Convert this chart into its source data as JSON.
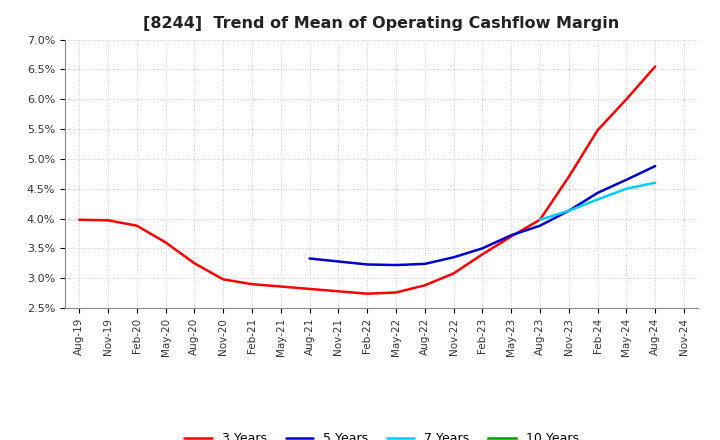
{
  "title": "[8244]  Trend of Mean of Operating Cashflow Margin",
  "x_labels": [
    "Aug-19",
    "Nov-19",
    "Feb-20",
    "May-20",
    "Aug-20",
    "Nov-20",
    "Feb-21",
    "May-21",
    "Aug-21",
    "Nov-21",
    "Feb-22",
    "May-22",
    "Aug-22",
    "Nov-22",
    "Feb-23",
    "May-23",
    "Aug-23",
    "Nov-23",
    "Feb-24",
    "May-24",
    "Aug-24",
    "Nov-24"
  ],
  "ylim": [
    0.025,
    0.07
  ],
  "yticks": [
    0.025,
    0.03,
    0.035,
    0.04,
    0.045,
    0.05,
    0.055,
    0.06,
    0.065,
    0.07
  ],
  "ytick_labels": [
    "2.5%",
    "3.0%",
    "3.5%",
    "4.0%",
    "4.5%",
    "5.0%",
    "5.5%",
    "6.0%",
    "6.5%",
    "7.0%"
  ],
  "series": {
    "3 Years": {
      "color": "#FF0000",
      "linewidth": 1.8,
      "data_x": [
        0,
        1,
        2,
        3,
        4,
        5,
        6,
        7,
        8,
        9,
        10,
        11,
        12,
        13,
        14,
        15,
        16,
        17,
        18,
        19,
        20
      ],
      "data_y": [
        0.0398,
        0.0397,
        0.0388,
        0.036,
        0.0325,
        0.0298,
        0.029,
        0.0286,
        0.0282,
        0.0278,
        0.0274,
        0.0276,
        0.0288,
        0.0308,
        0.034,
        0.037,
        0.0398,
        0.047,
        0.0548,
        0.06,
        0.0655
      ]
    },
    "5 Years": {
      "color": "#0000CC",
      "linewidth": 1.8,
      "data_x": [
        8,
        9,
        10,
        11,
        12,
        13,
        14,
        15,
        16,
        17,
        18,
        19,
        20
      ],
      "data_y": [
        0.0333,
        0.0328,
        0.0323,
        0.0322,
        0.0324,
        0.0335,
        0.035,
        0.0372,
        0.0388,
        0.0413,
        0.0443,
        0.0465,
        0.0488
      ]
    },
    "7 Years": {
      "color": "#00CCFF",
      "linewidth": 1.8,
      "data_x": [
        16,
        17,
        18,
        19,
        20
      ],
      "data_y": [
        0.0398,
        0.0413,
        0.0432,
        0.045,
        0.046
      ]
    },
    "10 Years": {
      "color": "#009900",
      "linewidth": 1.8,
      "data_x": [],
      "data_y": []
    }
  },
  "background_color": "#FFFFFF",
  "plot_background": "#FFFFFF",
  "grid_color": "#BBBBBB",
  "title_fontsize": 11.5,
  "legend_ncol": 4
}
